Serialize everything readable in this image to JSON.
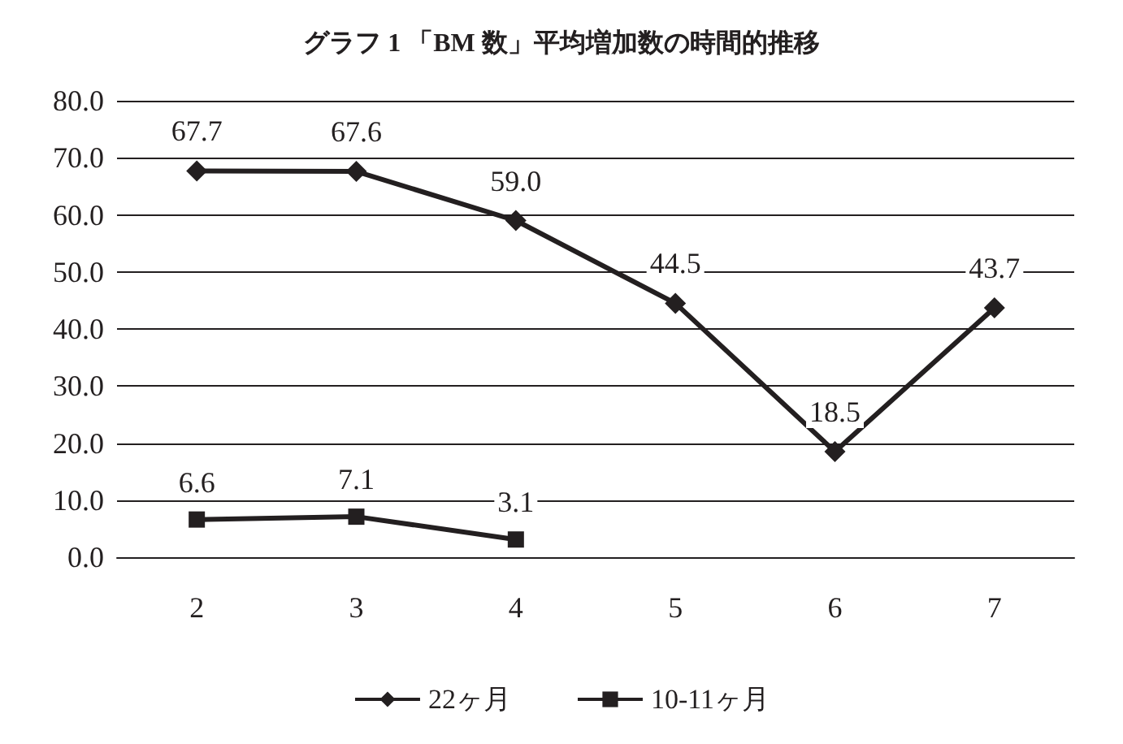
{
  "chart_data": {
    "type": "line",
    "title": "グラフ 1 「BM 数」平均増加数の時間的推移",
    "categories": [
      "2",
      "3",
      "4",
      "5",
      "6",
      "7"
    ],
    "series": [
      {
        "name": "22ヶ月",
        "color": "#231f20",
        "marker": "diamond",
        "values": [
          67.7,
          67.6,
          59.0,
          44.5,
          18.5,
          43.7
        ],
        "value_labels": [
          "67.7",
          "67.6",
          "59.0",
          "44.5",
          "18.5",
          "43.7"
        ]
      },
      {
        "name": "10-11ヶ月",
        "color": "#231f20",
        "marker": "square",
        "values": [
          6.6,
          7.1,
          3.1,
          null,
          null,
          null
        ],
        "value_labels": [
          "6.6",
          "7.1",
          "3.1",
          null,
          null,
          null
        ]
      }
    ],
    "ylim": [
      0,
      80
    ],
    "yticks": [
      {
        "value": 0,
        "label": "0.0"
      },
      {
        "value": 10,
        "label": "10.0"
      },
      {
        "value": 20,
        "label": "20.0"
      },
      {
        "value": 30,
        "label": "30.0"
      },
      {
        "value": 40,
        "label": "40.0"
      },
      {
        "value": 50,
        "label": "50.0"
      },
      {
        "value": 60,
        "label": "60.0"
      },
      {
        "value": 70,
        "label": "70.0"
      },
      {
        "value": 80,
        "label": "80.0"
      }
    ],
    "grid": "y",
    "legend": "bottom",
    "line_style": "solid"
  }
}
